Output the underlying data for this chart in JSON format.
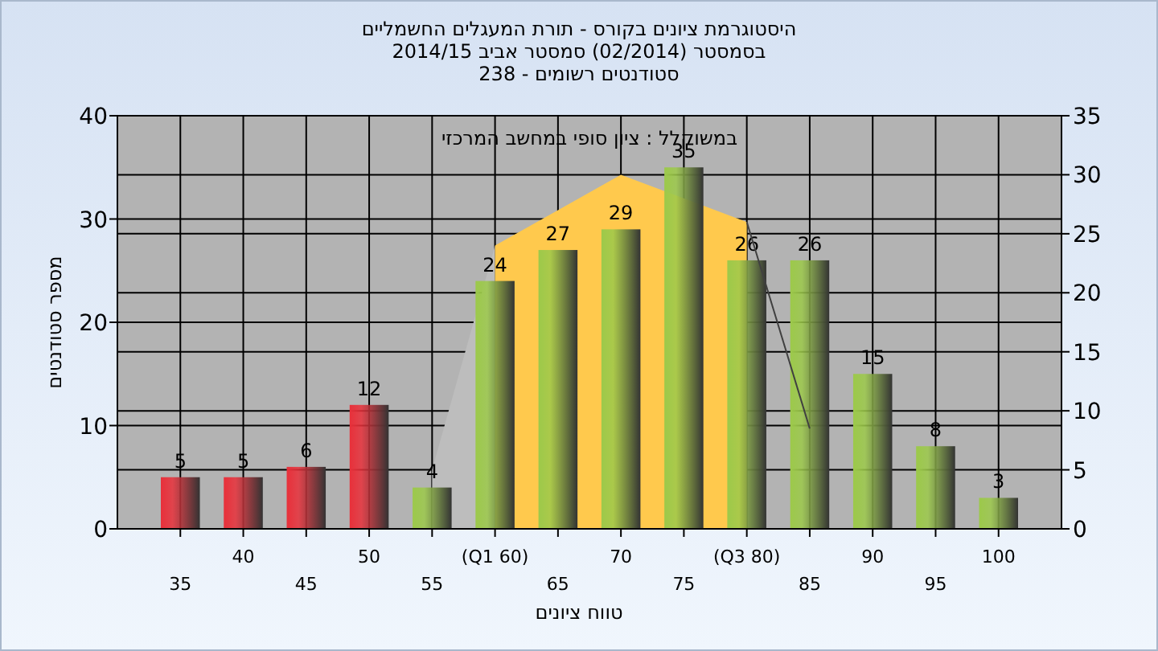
{
  "chart_data": {
    "type": "bar",
    "title": "היסטוגרמת ציונים בקורס - תורת המעגלים החשמליים",
    "subtitle": "בסמסטר  (02/2014)  סמסטר אביב 2014/15\nסטודנטים רשומים - 238",
    "xlabel": "טווח ציונים",
    "ylabel": "מספר סטודנטים",
    "annotations": [
      "במשוקלל : ציון סופי במחשב המרכזי"
    ],
    "categories": [
      "35",
      "40",
      "45",
      "50",
      "55",
      "(Q1 60)",
      "65",
      "70",
      "75",
      "(Q3 80)",
      "85",
      "90",
      "95",
      "100"
    ],
    "series": [
      {
        "type": "area",
        "axis": "y2",
        "color": "#bdbdbd",
        "values": [
          null,
          null,
          null,
          null,
          5,
          24,
          null,
          null,
          null,
          null,
          null,
          null,
          null,
          null
        ]
      },
      {
        "type": "area",
        "axis": "y2",
        "color": "#ffc94d",
        "values": [
          null,
          null,
          null,
          null,
          null,
          24,
          27,
          30,
          null,
          26,
          null,
          null,
          null,
          null
        ]
      },
      {
        "colors": [
          "#e8303a",
          "#e8303a",
          "#e8303a",
          "#e8303a",
          "#9cc94a",
          "#9cc94a",
          "#9cc94a",
          "#9cc94a",
          "#9cc94a",
          "#9cc94a",
          "#9cc94a",
          "#9cc94a",
          "#9cc94a",
          "#9cc94a"
        ],
        "values": [
          5,
          5,
          6,
          12,
          4,
          24,
          27,
          29,
          35,
          26,
          26,
          15,
          8,
          3
        ],
        "value_labels": [
          "5",
          "5",
          "6",
          "12",
          "4",
          "24",
          "27",
          "29",
          "35",
          "26",
          "26",
          "15",
          "8",
          "3"
        ]
      },
      {
        "type": "line",
        "axis": "y2",
        "color": "#404040",
        "values": [
          null,
          null,
          null,
          null,
          null,
          null,
          null,
          null,
          null,
          26,
          8.5,
          null,
          null,
          null
        ]
      }
    ],
    "ylim": [
      0,
      40
    ],
    "yticks": [
      0,
      10,
      20,
      30,
      40
    ],
    "y2lim": [
      0,
      35
    ],
    "y2ticks": [
      0,
      5,
      10,
      15,
      20,
      25,
      30,
      35
    ],
    "grid": true
  }
}
